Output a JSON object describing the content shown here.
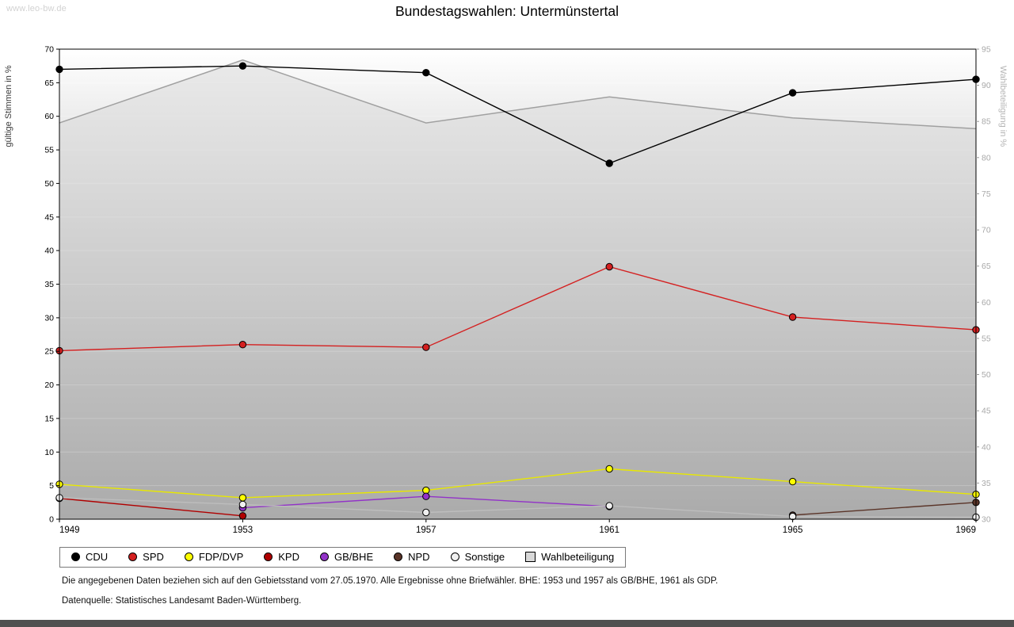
{
  "watermark": "www.leo-bw.de",
  "title": "Bundestagswahlen: Untermünstertal",
  "footnotes": {
    "line1": "Die angegebenen Daten beziehen sich auf den Gebietsstand vom 27.05.1970. Alle Ergebnisse ohne Briefwähler. BHE: 1953 und 1957 als GB/BHE, 1961 als GDP.",
    "line2": "Datenquelle: Statistisches Landesamt Baden-Württemberg."
  },
  "chart_data": {
    "type": "line",
    "title": "Bundestagswahlen: Untermünstertal",
    "x": [
      1949,
      1953,
      1957,
      1961,
      1965,
      1969
    ],
    "xlabel": "",
    "left_axis": {
      "label": "gültige Stimmen in %",
      "min": 0,
      "max": 70,
      "tick_step": 5
    },
    "right_axis": {
      "label": "Wahlbeteiligung in %",
      "min": 30,
      "max": 95,
      "tick_step": 5
    },
    "grid": true,
    "legend_position": "bottom",
    "background": {
      "top": "#ffffff",
      "bottom": "#7e7e7e"
    },
    "series": [
      {
        "name": "CDU",
        "type": "line",
        "axis": "left",
        "color": "#000000",
        "values": [
          67,
          67.5,
          66.5,
          53,
          63.5,
          65.5
        ]
      },
      {
        "name": "SPD",
        "type": "line",
        "axis": "left",
        "color": "#d42020",
        "values": [
          25.1,
          26,
          25.6,
          37.6,
          30.1,
          28.2
        ]
      },
      {
        "name": "FDP/DVP",
        "type": "line",
        "axis": "left",
        "color": "#e8e800",
        "marker_fill": "#ffff00",
        "values": [
          5.2,
          3.2,
          4.3,
          7.5,
          5.6,
          3.7
        ]
      },
      {
        "name": "KPD",
        "type": "line",
        "axis": "left",
        "color": "#b00000",
        "values": [
          3.1,
          0.5,
          null,
          null,
          null,
          null
        ]
      },
      {
        "name": "GB/BHE",
        "type": "line",
        "axis": "left",
        "color": "#9232c8",
        "values": [
          null,
          1.7,
          3.4,
          1.9,
          null,
          null
        ]
      },
      {
        "name": "NPD",
        "type": "line",
        "axis": "left",
        "color": "#5a3428",
        "values": [
          null,
          null,
          null,
          null,
          0.6,
          2.5
        ]
      },
      {
        "name": "Sonstige",
        "type": "line",
        "axis": "left",
        "color": "#bdbdbd",
        "marker_fill": "#f0f0f0",
        "values": [
          3.2,
          2.2,
          1.0,
          2.0,
          0.4,
          0.3
        ]
      },
      {
        "name": "Wahlbeteiligung",
        "type": "area",
        "axis": "right",
        "color": "#a0a0a0",
        "fill": "#d8d8d8",
        "fill_opacity": 0.5,
        "legend_swatch": "square",
        "values": [
          84.8,
          93.5,
          84.8,
          88.4,
          85.5,
          84.0
        ]
      }
    ]
  }
}
